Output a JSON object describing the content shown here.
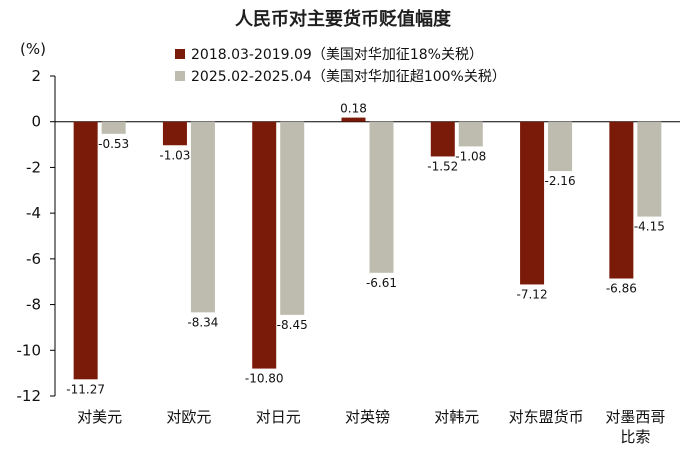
{
  "chart_data": {
    "type": "bar",
    "title": "人民币对主要货币贬值幅度",
    "ylabel": "(%)",
    "ylim": [
      -12,
      2
    ],
    "yticks": [
      2,
      0,
      -2,
      -4,
      -6,
      -8,
      -10,
      -12
    ],
    "grid": false,
    "legend_position": "top",
    "categories": [
      "对美元",
      "对欧元",
      "对日元",
      "对英镑",
      "对韩元",
      "对东盟货币",
      "对墨西哥比索"
    ],
    "series": [
      {
        "name": "2018.03-2019.09（美国对华加征18%关税）",
        "color": "#7a1a08",
        "values": [
          -11.27,
          -1.03,
          -10.8,
          0.18,
          -1.52,
          -7.12,
          -6.86
        ],
        "labels": [
          "-11.27",
          "-1.03",
          "-10.80",
          "0.18",
          "-1.52",
          "-7.12",
          "-6.86"
        ]
      },
      {
        "name": "2025.02-2025.04（美国对华加征超100%关税）",
        "color": "#bdbcae",
        "values": [
          -0.53,
          -8.34,
          -8.45,
          -6.61,
          -1.08,
          -2.16,
          -4.15
        ],
        "labels": [
          "-0.53",
          "-8.34",
          "-8.45",
          "-6.61",
          "-1.08",
          "-2.16",
          "-4.15"
        ]
      }
    ]
  }
}
